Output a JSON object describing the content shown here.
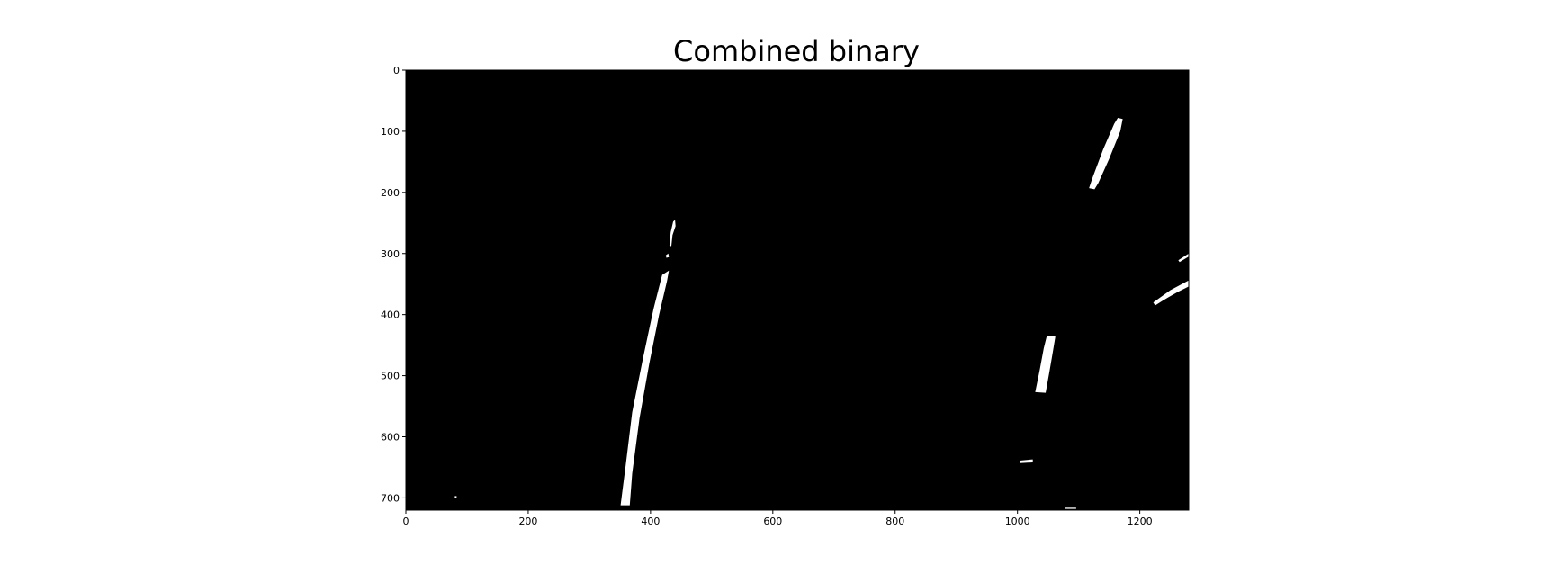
{
  "figure": {
    "title": "Combined binary"
  },
  "axes": {
    "x_ticks": [
      "0",
      "200",
      "400",
      "600",
      "800",
      "1000",
      "1200"
    ],
    "y_ticks": [
      "0",
      "100",
      "200",
      "300",
      "400",
      "500",
      "600",
      "700"
    ],
    "xlim": [
      0,
      1280
    ],
    "ylim": [
      720,
      0
    ],
    "background_color": "#000000",
    "foreground_color": "#ffffff"
  },
  "image": {
    "width": 1280,
    "height": 720,
    "regions": [
      {
        "name": "left-lane-line-main",
        "shape": "polygon",
        "points": [
          [
            351,
            712
          ],
          [
            359,
            650
          ],
          [
            370,
            560
          ],
          [
            388,
            470
          ],
          [
            405,
            390
          ],
          [
            419,
            335
          ],
          [
            430,
            328
          ],
          [
            427,
            345
          ],
          [
            414,
            400
          ],
          [
            398,
            480
          ],
          [
            382,
            570
          ],
          [
            370,
            660
          ],
          [
            366,
            712
          ]
        ]
      },
      {
        "name": "left-lane-line-top-fragment",
        "shape": "polygon",
        "points": [
          [
            431,
            287
          ],
          [
            433,
            265
          ],
          [
            437,
            248
          ],
          [
            440,
            245
          ],
          [
            441,
            255
          ],
          [
            436,
            270
          ],
          [
            434,
            288
          ]
        ]
      },
      {
        "name": "left-lane-line-dot",
        "shape": "polygon",
        "points": [
          [
            425,
            303
          ],
          [
            429,
            300
          ],
          [
            430,
            306
          ],
          [
            426,
            307
          ]
        ]
      },
      {
        "name": "right-lane-line-top",
        "shape": "polygon",
        "points": [
          [
            1117,
            193
          ],
          [
            1122,
            178
          ],
          [
            1140,
            130
          ],
          [
            1158,
            88
          ],
          [
            1164,
            78
          ],
          [
            1172,
            80
          ],
          [
            1168,
            100
          ],
          [
            1150,
            145
          ],
          [
            1132,
            185
          ],
          [
            1126,
            195
          ]
        ]
      },
      {
        "name": "right-lane-line-middle",
        "shape": "polygon",
        "points": [
          [
            1029,
            527
          ],
          [
            1036,
            492
          ],
          [
            1043,
            455
          ],
          [
            1048,
            435
          ],
          [
            1062,
            436
          ],
          [
            1058,
            460
          ],
          [
            1052,
            495
          ],
          [
            1046,
            528
          ]
        ]
      },
      {
        "name": "right-edge-diagonal-1",
        "shape": "polygon",
        "points": [
          [
            1222,
            380
          ],
          [
            1250,
            360
          ],
          [
            1280,
            344
          ],
          [
            1280,
            352
          ],
          [
            1255,
            366
          ],
          [
            1225,
            385
          ]
        ]
      },
      {
        "name": "right-edge-diagonal-2",
        "shape": "polygon",
        "points": [
          [
            1237,
            372
          ],
          [
            1260,
            358
          ],
          [
            1280,
            348
          ],
          [
            1280,
            354
          ],
          [
            1262,
            363
          ],
          [
            1239,
            376
          ]
        ]
      },
      {
        "name": "right-edge-fragment",
        "shape": "polygon",
        "points": [
          [
            1263,
            311
          ],
          [
            1280,
            300
          ],
          [
            1280,
            305
          ],
          [
            1265,
            314
          ]
        ]
      },
      {
        "name": "bottom-dash-1",
        "shape": "polygon",
        "points": [
          [
            1004,
            639
          ],
          [
            1025,
            637
          ],
          [
            1025,
            642
          ],
          [
            1004,
            643
          ]
        ]
      },
      {
        "name": "bottom-speck-1",
        "shape": "polygon",
        "points": [
          [
            80,
            697
          ],
          [
            83,
            697
          ],
          [
            83,
            700
          ],
          [
            80,
            700
          ]
        ]
      },
      {
        "name": "bottom-speck-2",
        "shape": "polygon",
        "points": [
          [
            1078,
            716
          ],
          [
            1096,
            716
          ],
          [
            1096,
            718
          ],
          [
            1078,
            718
          ]
        ]
      }
    ]
  }
}
